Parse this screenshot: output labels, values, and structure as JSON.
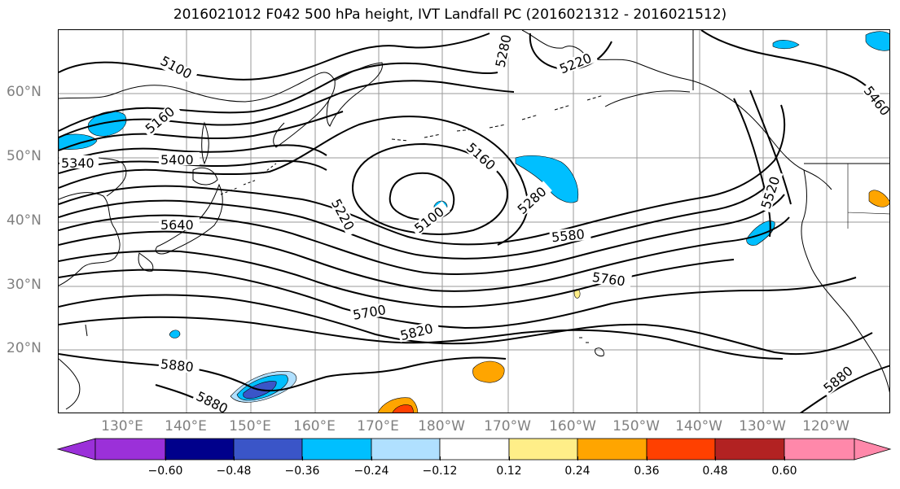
{
  "title": "2016021012 F042 500 hPa height, IVT Landfall PC (2016021312 - 2016021512)",
  "latitude_labels": [
    "60°N",
    "50°N",
    "40°N",
    "30°N",
    "20°N"
  ],
  "longitude_labels": [
    "130°E",
    "140°E",
    "150°E",
    "160°E",
    "170°E",
    "180°W",
    "170°W",
    "160°W",
    "150°W",
    "140°W",
    "130°W",
    "120°W"
  ],
  "contour_labels": [
    "5100",
    "5220",
    "5160",
    "5340",
    "5400",
    "5640",
    "5220",
    "5100",
    "5160",
    "5280",
    "5580",
    "5520",
    "5460",
    "5280",
    "5760",
    "5700",
    "5820",
    "5880",
    "5880",
    "5880"
  ],
  "colorbar": {
    "tick_labels": [
      "−0.60",
      "−0.48",
      "−0.36",
      "−0.24",
      "−0.12",
      "0.12",
      "0.24",
      "0.36",
      "0.48",
      "0.60"
    ],
    "colors": [
      "#9b30d9",
      "#00008b",
      "#3a55c8",
      "#00bfff",
      "#b0e0ff",
      "#ffffff",
      "#ffee88",
      "#ffa500",
      "#ff4000",
      "#b22222",
      "#ff88aa"
    ]
  }
}
